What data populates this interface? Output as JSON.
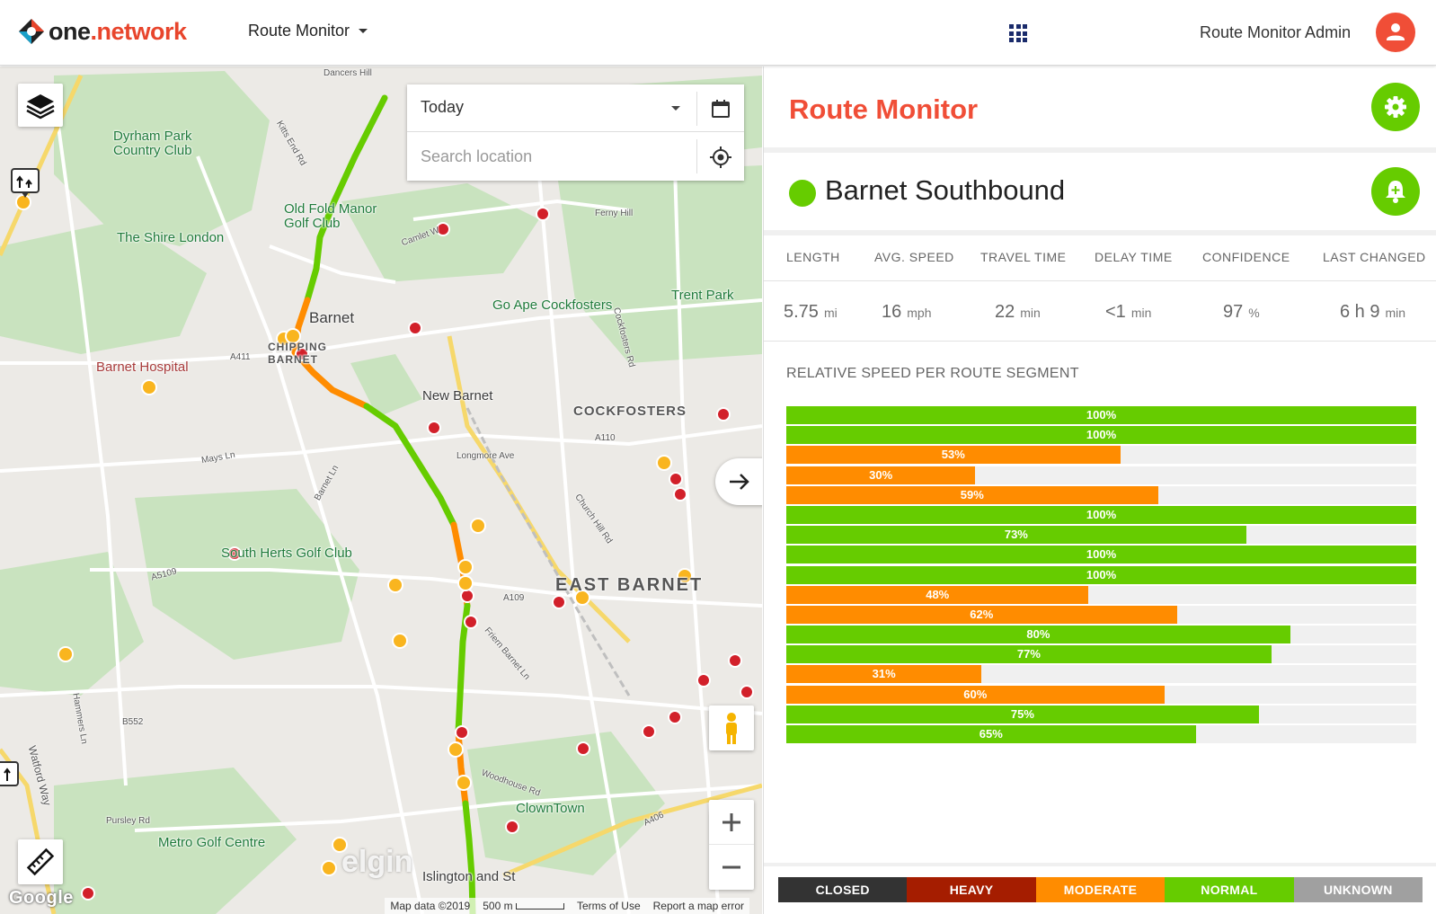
{
  "header": {
    "logo": {
      "part1": "one",
      "part2": ".network"
    },
    "app_menu_label": "Route Monitor",
    "user_name": "Route Monitor Admin",
    "icons": {
      "apps": "apps-grid-icon",
      "user": "user-icon",
      "caret": "caret-down-icon"
    }
  },
  "map": {
    "date_select": {
      "value": "Today"
    },
    "search": {
      "placeholder": "Search location"
    },
    "labels": {
      "dyrham_park": "Dyrham Park Country Club",
      "shire_london": "The Shire London",
      "old_fold": "Old Fold Manor Golf Club",
      "barnet": "Barnet",
      "chipping": "CHIPPING BARNET",
      "barnet_hospital": "Barnet Hospital",
      "new_barnet": "New Barnet",
      "go_ape": "Go Ape Cockfosters",
      "trent_park": "Trent Park",
      "cockfosters": "COCKFOSTERS",
      "south_herts": "South Herts Golf Club",
      "east_barnet": "EAST BARNET",
      "clowntown": "ClownTown",
      "metro_golf": "Metro Golf Centre",
      "islington": "Islington and St",
      "road_a411": "A411",
      "road_a110": "A110",
      "road_a109": "A109",
      "road_a5109": "A5109",
      "road_b552": "B552",
      "road_a406": "A406",
      "road_mays": "Mays Ln",
      "road_longmore": "Longmore Ave",
      "road_church_hill": "Church Hill Rd",
      "road_cockfosters": "Cockfosters Rd",
      "road_friern": "Friern Barnet Ln",
      "road_woodhouse": "Woodhouse Rd",
      "road_watford": "Watford Way",
      "road_ferny": "Ferny Hill",
      "road_camlet": "Camlet W",
      "road_kitts": "Kitts End Rd",
      "road_dancers": "Dancers Hill",
      "road_hammers": "Hammers Ln",
      "road_pursley": "Pursley Rd",
      "road_barnet_ln": "Barnet Ln"
    },
    "footer": {
      "map_data": "Map data ©2019",
      "scale": "500 m",
      "terms": "Terms of Use",
      "report": "Report a map error"
    },
    "google": "Google",
    "watermark": "elgin",
    "icons": {
      "layers": "layers-icon",
      "calendar": "calendar-icon",
      "locate": "locate-icon",
      "arrow": "arrow-right-icon",
      "pegman": "pegman-icon",
      "zoom_in": "plus-icon",
      "zoom_out": "minus-icon",
      "ruler": "ruler-icon",
      "diversion": "diversion-icon"
    }
  },
  "panel": {
    "title": "Route Monitor",
    "route_name": "Barnet Southbound",
    "route_status_color": "#66cc00",
    "stats": [
      {
        "label": "LENGTH",
        "value": "5.75",
        "unit": "mi"
      },
      {
        "label": "AVG. SPEED",
        "value": "16",
        "unit": "mph"
      },
      {
        "label": "TRAVEL TIME",
        "value": "22",
        "unit": "min"
      },
      {
        "label": "DELAY TIME",
        "value": "<1",
        "unit": "min"
      },
      {
        "label": "CONFIDENCE",
        "value": "97",
        "unit": "%"
      },
      {
        "label": "LAST CHANGED",
        "value": "6 h 9",
        "unit": "min"
      }
    ],
    "segments_title": "RELATIVE SPEED PER ROUTE SEGMENT",
    "segments": [
      {
        "pct": 100,
        "label": "100%",
        "level": "normal"
      },
      {
        "pct": 100,
        "label": "100%",
        "level": "normal"
      },
      {
        "pct": 53,
        "label": "53%",
        "level": "moderate"
      },
      {
        "pct": 30,
        "label": "30%",
        "level": "moderate"
      },
      {
        "pct": 59,
        "label": "59%",
        "level": "moderate"
      },
      {
        "pct": 100,
        "label": "100%",
        "level": "normal"
      },
      {
        "pct": 73,
        "label": "73%",
        "level": "normal"
      },
      {
        "pct": 100,
        "label": "100%",
        "level": "normal"
      },
      {
        "pct": 100,
        "label": "100%",
        "level": "normal"
      },
      {
        "pct": 48,
        "label": "48%",
        "level": "moderate"
      },
      {
        "pct": 62,
        "label": "62%",
        "level": "moderate"
      },
      {
        "pct": 80,
        "label": "80%",
        "level": "normal"
      },
      {
        "pct": 77,
        "label": "77%",
        "level": "normal"
      },
      {
        "pct": 31,
        "label": "31%",
        "level": "moderate"
      },
      {
        "pct": 60,
        "label": "60%",
        "level": "moderate"
      },
      {
        "pct": 75,
        "label": "75%",
        "level": "normal"
      },
      {
        "pct": 65,
        "label": "65%",
        "level": "normal"
      }
    ],
    "legend": [
      {
        "label": "CLOSED",
        "color": "#333333"
      },
      {
        "label": "HEAVY",
        "color": "#a51d00"
      },
      {
        "label": "MODERATE",
        "color": "#ff8c00"
      },
      {
        "label": "NORMAL",
        "color": "#66cc00"
      },
      {
        "label": "UNKNOWN",
        "color": "#a0a0a0"
      }
    ],
    "level_colors": {
      "normal": "#66cc00",
      "moderate": "#ff8c00",
      "heavy": "#a51d00",
      "closed": "#333333"
    },
    "icons": {
      "settings": "gear-icon",
      "add_alert": "bell-plus-icon"
    }
  }
}
